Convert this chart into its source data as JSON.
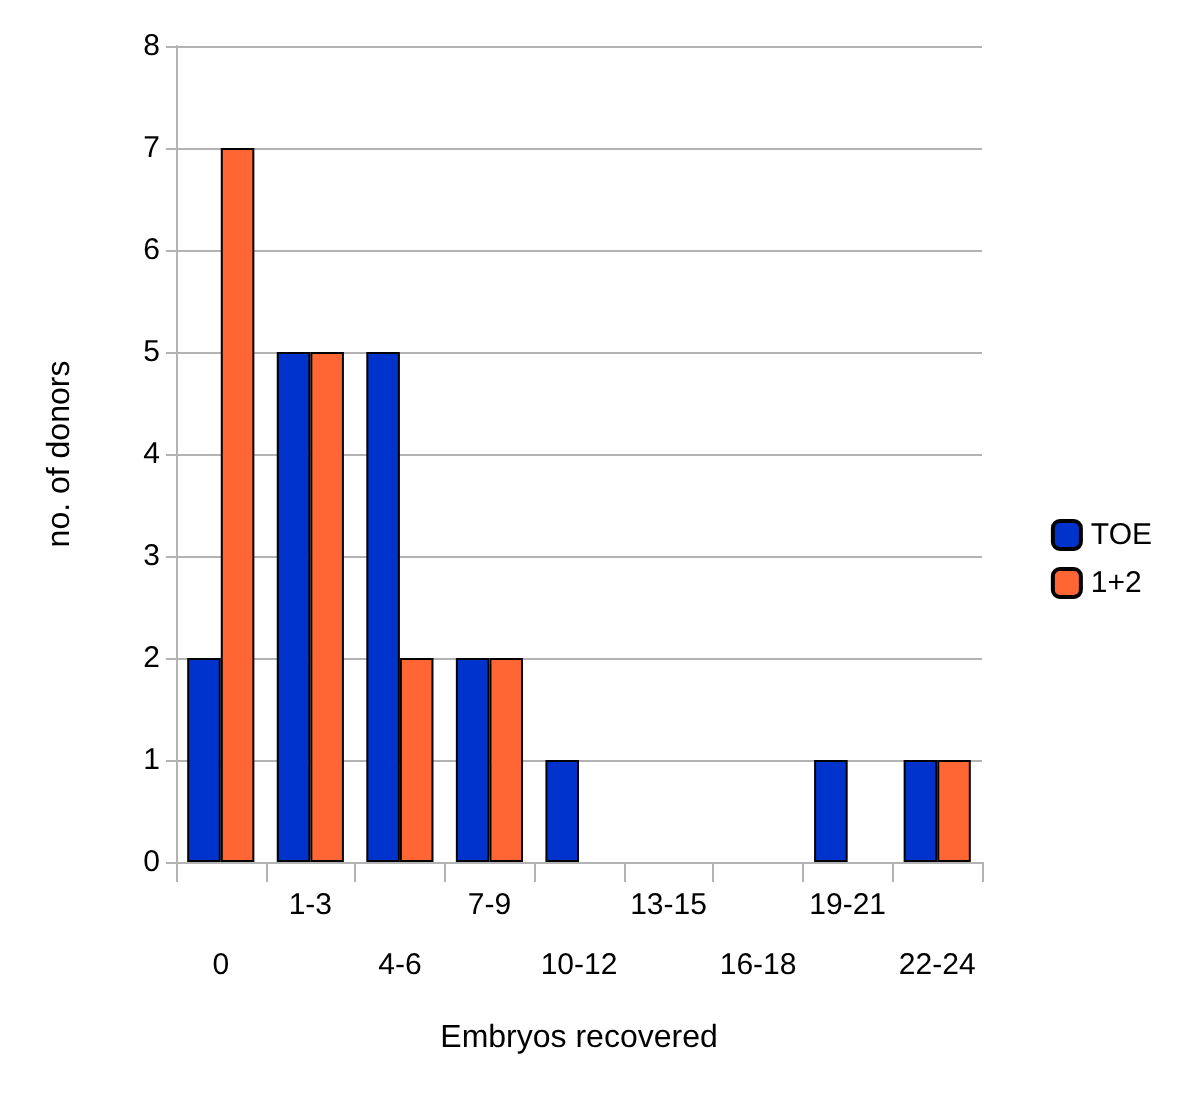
{
  "chart_data": {
    "type": "bar",
    "xlabel": "Embryos recovered",
    "ylabel": "no. of donors",
    "categories": [
      "0",
      "1-3",
      "4-6",
      "7-9",
      "10-12",
      "13-15",
      "16-18",
      "19-21",
      "22-24"
    ],
    "series": [
      {
        "name": "TOE",
        "color": "#0033cc",
        "values": [
          2,
          5,
          5,
          2,
          1,
          0,
          0,
          1,
          1
        ]
      },
      {
        "name": "1+2",
        "color": "#ff6633",
        "values": [
          7,
          5,
          2,
          2,
          0,
          0,
          0,
          0,
          1
        ]
      }
    ],
    "ylim": [
      0,
      8
    ],
    "yticks": [
      0,
      1,
      2,
      3,
      4,
      5,
      6,
      7,
      8
    ],
    "grid": "y",
    "legend": "right"
  }
}
